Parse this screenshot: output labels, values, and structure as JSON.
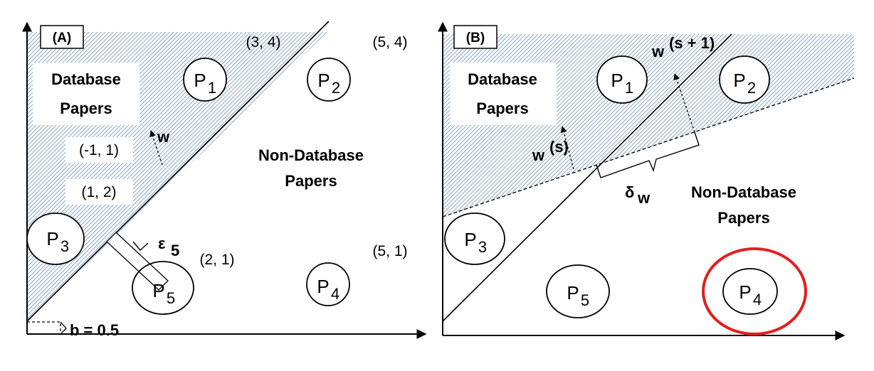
{
  "panels": [
    {
      "tag": "(A)",
      "region_labels": {
        "database_line1": "Database",
        "database_line2": "Papers",
        "non_database_line1": "Non-Database",
        "non_database_line2": "Papers"
      },
      "papers": [
        {
          "label": "P",
          "sub": "1",
          "coord": "(3, 4)"
        },
        {
          "label": "P",
          "sub": "2",
          "coord": "(5, 4)"
        },
        {
          "label": "P",
          "sub": "3",
          "coord": "(-1, 1)"
        },
        {
          "label": "P",
          "sub": "4",
          "coord": "(5, 1)"
        },
        {
          "label": "P",
          "sub": "5",
          "coord": "(2, 1)"
        }
      ],
      "extra_coord": "(1, 2)",
      "weight_label": "w",
      "epsilon_label": "ε",
      "epsilon_sub": "5",
      "bias_label": "b = 0.5"
    },
    {
      "tag": "(B)",
      "region_labels": {
        "database_line1": "Database",
        "database_line2": "Papers",
        "non_database_line1": "Non-Database",
        "non_database_line2": "Papers"
      },
      "papers": [
        {
          "label": "P",
          "sub": "1"
        },
        {
          "label": "P",
          "sub": "2"
        },
        {
          "label": "P",
          "sub": "3"
        },
        {
          "label": "P",
          "sub": "4"
        },
        {
          "label": "P",
          "sub": "5"
        }
      ],
      "w_next_base": "w",
      "w_next_sup": "(s + 1)",
      "w_curr_base": "w",
      "w_curr_sup": "(s)",
      "delta_label": "δ",
      "delta_sub": "w",
      "highlight_color": "#e41e1e"
    }
  ],
  "colors": {
    "hatch": "#6f8fb4",
    "ink": "#000000"
  }
}
